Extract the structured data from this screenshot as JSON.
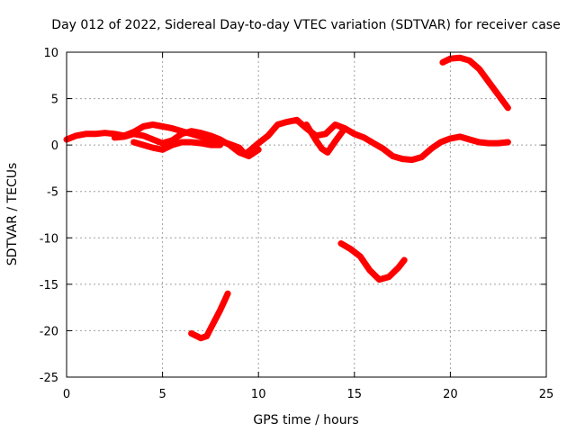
{
  "chart_data": {
    "type": "line",
    "title": "Day 012 of 2022, Sidereal Day-to-day VTEC variation (SDTVAR) for receiver case",
    "xlabel": "GPS time / hours",
    "ylabel": "SDTVAR / TECUs",
    "xlim": [
      0,
      25
    ],
    "ylim": [
      -25,
      10
    ],
    "xticks": [
      0,
      5,
      10,
      15,
      20,
      25
    ],
    "yticks": [
      -25,
      -20,
      -15,
      -10,
      -5,
      0,
      5,
      10
    ],
    "grid": true,
    "series_color": "#ff0000",
    "series": [
      {
        "name": "main-band-a",
        "x": [
          0,
          0.5,
          1,
          1.5,
          2,
          2.5,
          3,
          3.5,
          4,
          4.5,
          5,
          5.5,
          6,
          6.5,
          7,
          7.5,
          8,
          8.5,
          9,
          9.3,
          9.6,
          10,
          10.5,
          11,
          11.5,
          12,
          12.5,
          13,
          13.5,
          14,
          14.5,
          15,
          15.5,
          16,
          16.5,
          17,
          17.5,
          18,
          18.5,
          19,
          19.5,
          20,
          20.5,
          21,
          21.5,
          22,
          22.5,
          23
        ],
        "y": [
          0.6,
          1.0,
          1.2,
          1.2,
          1.3,
          1.2,
          1.0,
          1.4,
          2.0,
          2.2,
          2.0,
          1.8,
          1.5,
          1.2,
          0.9,
          0.6,
          0.4,
          0.1,
          -0.3,
          -1.0,
          -0.5,
          0.2,
          1.0,
          2.2,
          2.5,
          2.7,
          1.8,
          1.0,
          1.2,
          2.2,
          1.8,
          1.2,
          0.8,
          0.2,
          -0.4,
          -1.2,
          -1.5,
          -1.6,
          -1.3,
          -0.4,
          0.3,
          0.7,
          0.9,
          0.6,
          0.3,
          0.2,
          0.2,
          0.3
        ]
      },
      {
        "name": "main-band-b",
        "x": [
          2.5,
          3,
          3.5,
          4,
          4.5,
          5,
          5.5,
          6,
          6.5,
          7,
          7.5,
          8,
          8.5,
          9,
          9.5,
          10
        ],
        "y": [
          0.8,
          0.9,
          1.2,
          1.0,
          0.6,
          0.2,
          0.5,
          1.2,
          1.5,
          1.3,
          1.0,
          0.6,
          0.0,
          -0.8,
          -1.2,
          -0.5
        ]
      },
      {
        "name": "main-band-c",
        "x": [
          3.5,
          4,
          4.5,
          5,
          5.5,
          6,
          6.5,
          7,
          7.5,
          8
        ],
        "y": [
          0.3,
          0.0,
          -0.3,
          -0.5,
          0.0,
          0.3,
          0.3,
          0.2,
          0.0,
          0.0
        ]
      },
      {
        "name": "main-band-d",
        "x": [
          12.5,
          13,
          13.3,
          13.6,
          14,
          14.5
        ],
        "y": [
          2.2,
          0.5,
          -0.4,
          -0.8,
          0.4,
          1.8
        ]
      },
      {
        "name": "upper-arc",
        "x": [
          19.6,
          20,
          20.5,
          21,
          21.5,
          22,
          22.5,
          23
        ],
        "y": [
          8.9,
          9.3,
          9.4,
          9.1,
          8.2,
          6.8,
          5.4,
          4.0
        ]
      },
      {
        "name": "lower-arc-left",
        "x": [
          6.5,
          6.8,
          7.0,
          7.3,
          7.6,
          8.0,
          8.4
        ],
        "y": [
          -20.3,
          -20.6,
          -20.8,
          -20.6,
          -19.4,
          -17.8,
          -16.0
        ]
      },
      {
        "name": "lower-arc-right",
        "x": [
          14.3,
          14.8,
          15.3,
          15.8,
          16.3,
          16.8,
          17.3,
          17.6
        ],
        "y": [
          -10.6,
          -11.2,
          -12.0,
          -13.5,
          -14.5,
          -14.2,
          -13.2,
          -12.4
        ]
      }
    ]
  }
}
